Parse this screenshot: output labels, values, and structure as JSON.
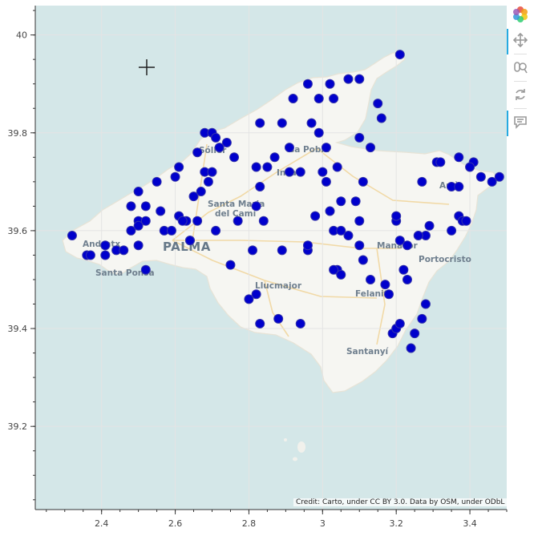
{
  "chart_data": {
    "type": "scatter",
    "xlim": [
      2.22,
      3.5
    ],
    "ylim": [
      39.03,
      40.06
    ],
    "x_ticks": [
      "2.4",
      "2.6",
      "2.8",
      "3",
      "3.2",
      "3.4"
    ],
    "y_ticks": [
      "39.2",
      "39.4",
      "39.6",
      "39.8",
      "40"
    ],
    "grid": true,
    "marker_color": "#0000cc",
    "background_tiles": "CartoDB Voyager",
    "x": [
      3.21,
      2.96,
      3.02,
      3.07,
      3.1,
      2.99,
      3.03,
      2.92,
      3.15,
      3.16,
      2.83,
      2.89,
      2.97,
      3.1,
      2.99,
      2.68,
      2.7,
      2.71,
      3.01,
      3.13,
      3.37,
      3.41,
      3.4,
      3.31,
      3.43,
      3.48,
      2.74,
      2.72,
      2.76,
      2.66,
      2.68,
      2.7,
      2.69,
      2.61,
      2.6,
      2.55,
      2.5,
      2.65,
      2.67,
      2.82,
      2.83,
      2.85,
      2.87,
      2.94,
      2.91,
      2.91,
      3.0,
      3.04,
      3.01,
      3.05,
      3.11,
      2.98,
      3.27,
      3.35,
      3.37,
      3.32,
      3.46,
      2.48,
      2.52,
      2.5,
      2.52,
      2.56,
      2.48,
      2.5,
      2.57,
      2.63,
      2.64,
      2.66,
      2.59,
      2.61,
      2.62,
      2.64,
      2.71,
      2.77,
      2.82,
      2.84,
      3.09,
      3.1,
      3.2,
      3.2,
      3.29,
      3.37,
      3.38,
      3.39,
      3.35,
      2.32,
      2.44,
      2.41,
      2.46,
      2.36,
      2.37,
      2.41,
      2.5,
      2.52,
      3.07,
      3.1,
      3.03,
      3.02,
      2.75,
      2.81,
      2.89,
      2.96,
      2.96,
      3.05,
      3.11,
      3.13,
      3.21,
      3.23,
      3.28,
      3.22,
      3.23,
      3.26,
      3.17,
      2.82,
      2.8,
      2.83,
      2.88,
      2.94,
      3.04,
      3.05,
      3.03,
      3.18,
      3.19,
      3.2,
      3.21,
      3.27,
      3.28,
      3.25,
      3.24
    ],
    "y": [
      39.96,
      39.9,
      39.9,
      39.91,
      39.91,
      39.87,
      39.87,
      39.87,
      39.86,
      39.83,
      39.82,
      39.82,
      39.82,
      39.79,
      39.8,
      39.8,
      39.8,
      39.79,
      39.77,
      39.77,
      39.75,
      39.74,
      39.73,
      39.74,
      39.71,
      39.71,
      39.78,
      39.77,
      39.75,
      39.76,
      39.72,
      39.72,
      39.7,
      39.73,
      39.71,
      39.7,
      39.68,
      39.67,
      39.68,
      39.73,
      39.69,
      39.73,
      39.75,
      39.72,
      39.72,
      39.77,
      39.72,
      39.73,
      39.7,
      39.66,
      39.7,
      39.63,
      39.7,
      39.69,
      39.69,
      39.74,
      39.7,
      39.65,
      39.65,
      39.62,
      39.62,
      39.64,
      39.6,
      39.61,
      39.6,
      39.62,
      39.58,
      39.62,
      39.6,
      39.63,
      39.62,
      39.58,
      39.6,
      39.62,
      39.65,
      39.62,
      39.66,
      39.62,
      39.62,
      39.63,
      39.61,
      39.63,
      39.62,
      39.62,
      39.6,
      39.59,
      39.56,
      39.57,
      39.56,
      39.55,
      39.55,
      39.55,
      39.57,
      39.52,
      39.59,
      39.57,
      39.6,
      39.64,
      39.53,
      39.56,
      39.56,
      39.56,
      39.57,
      39.6,
      39.54,
      39.5,
      39.58,
      39.57,
      39.59,
      39.52,
      39.5,
      39.59,
      39.49,
      39.47,
      39.46,
      39.41,
      39.42,
      39.41,
      39.52,
      39.51,
      39.52,
      39.47,
      39.39,
      39.4,
      39.41,
      39.42,
      39.45,
      39.39,
      39.36
    ]
  },
  "map_labels": {
    "palma": "PALMA",
    "llucmajor": "Llucmajor",
    "felanitx": "Felanitx",
    "manacor": "Manacor",
    "portocristo": "Portocristo",
    "santanyi": "Santanyí",
    "santa_ponsa": "Santa Ponsa",
    "andratx": "Andratx",
    "santa_maria": "Santa Maria del Camí",
    "santa_maria_line1": "Santa Maria",
    "santa_maria_line2": "del Camí",
    "sa_pobla": "sa Pobla",
    "soller": "Sóller",
    "arta": "Artà",
    "inca": "Inca"
  },
  "attribution": "Credit: Carto, under CC BY 3.0. Data by OSM, under ODbL",
  "toolbar": {
    "icons": [
      "bokeh-logo-icon",
      "pan-icon",
      "wheel-zoom-icon",
      "reset-icon",
      "hover-icon"
    ]
  }
}
